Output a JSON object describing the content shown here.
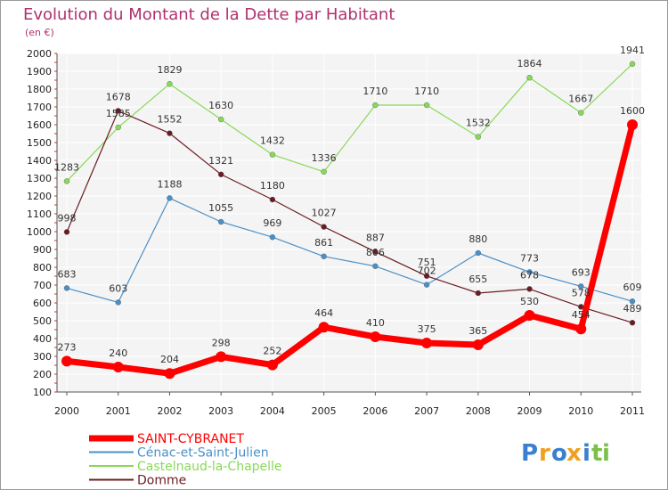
{
  "chart_data": {
    "type": "line",
    "title": "Evolution du Montant de la Dette par Habitant",
    "subtitle": "(en €)",
    "x": [
      "2000",
      "2001",
      "2002",
      "2003",
      "2004",
      "2005",
      "2006",
      "2007",
      "2008",
      "2009",
      "2010",
      "2011"
    ],
    "ylim": [
      100,
      2000
    ],
    "yticks": [
      100,
      200,
      300,
      400,
      500,
      600,
      700,
      800,
      900,
      1000,
      1100,
      1200,
      1300,
      1400,
      1500,
      1600,
      1700,
      1800,
      1900,
      2000
    ],
    "grid": true,
    "legend_position": "bottom-left",
    "series": [
      {
        "name": "SAINT-CYBRANET",
        "color": "#ff0000",
        "values": [
          273,
          240,
          204,
          298,
          252,
          464,
          410,
          375,
          365,
          530,
          454,
          1600
        ]
      },
      {
        "name": "Cénac-et-Saint-Julien",
        "color": "#4a90c8",
        "values": [
          683,
          603,
          1188,
          1055,
          969,
          861,
          806,
          702,
          880,
          773,
          693,
          609
        ]
      },
      {
        "name": "Castelnaud-la-Chapelle",
        "color": "#88d957",
        "values": [
          1283,
          1585,
          1829,
          1630,
          1432,
          1336,
          1710,
          1710,
          1532,
          1864,
          1667,
          1941
        ]
      },
      {
        "name": "Domme",
        "color": "#6b1c23",
        "values": [
          998,
          1678,
          1552,
          1321,
          1180,
          1027,
          887,
          751,
          655,
          678,
          578,
          489
        ]
      }
    ]
  },
  "brand": {
    "letters": [
      "P",
      "r",
      "o",
      "x",
      "i",
      "t",
      "i"
    ],
    "colors": [
      "#3a7fd0",
      "#f0a020",
      "#3a7fd0",
      "#f0a020",
      "#3a7fd0",
      "#7cc04a",
      "#7cc04a"
    ]
  }
}
